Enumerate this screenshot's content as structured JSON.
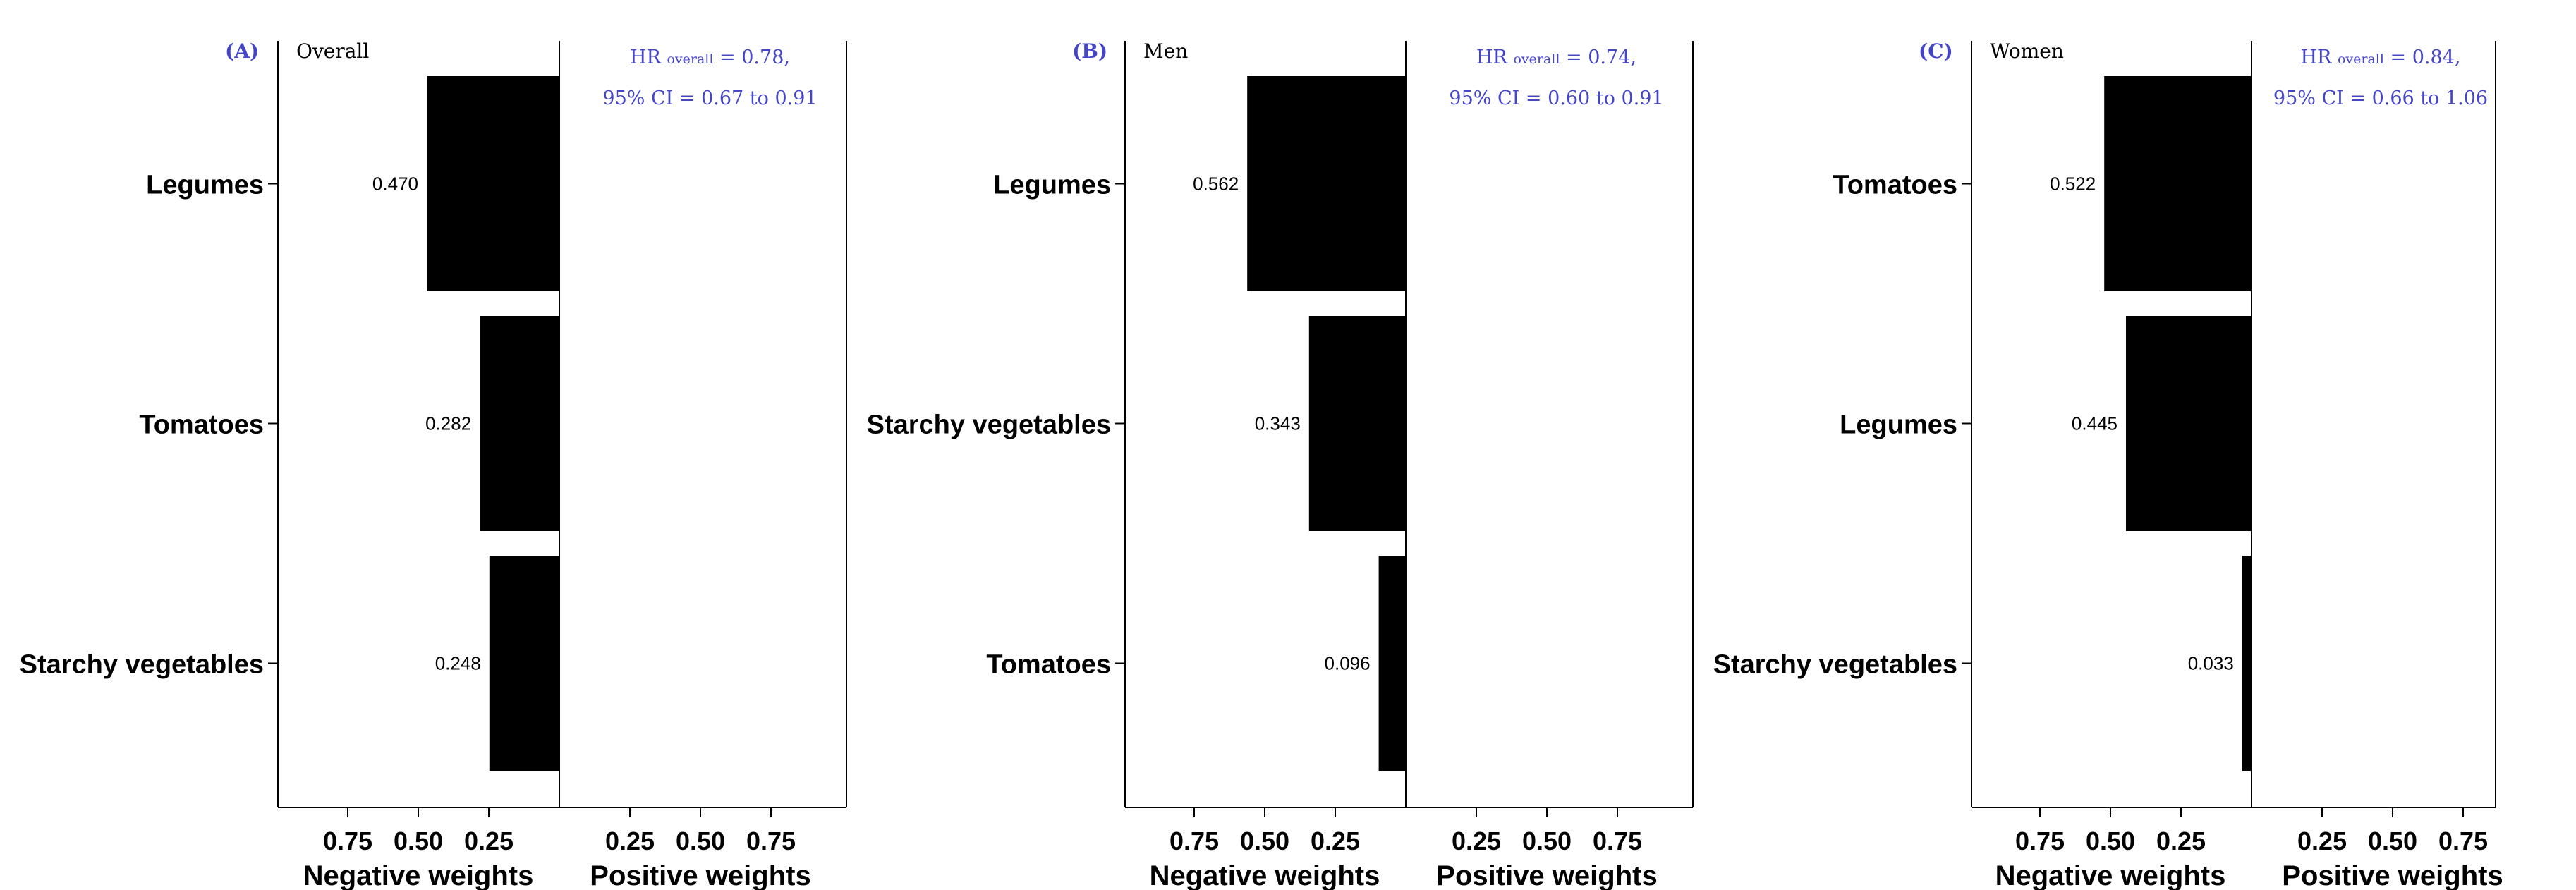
{
  "chart_data": [
    {
      "type": "bar",
      "panel": "(A)",
      "title": "Overall",
      "hr_prefix": "HR",
      "hr_subscript": "overall",
      "hr_value": "= 0.78,",
      "ci_text": "95% CI = 0.67 to 0.91",
      "categories": [
        "Legumes",
        "Tomatoes",
        "Starchy  vegetables"
      ],
      "values": [
        0.47,
        0.282,
        0.248
      ],
      "value_labels": [
        "0.470",
        "0.282",
        "0.248"
      ],
      "sign": "negative",
      "xlim": [
        -1,
        1
      ],
      "ticks_negative": [
        "0.75",
        "0.50",
        "0.25"
      ],
      "ticks_positive": [
        "0.25",
        "0.50",
        "0.75"
      ],
      "xlabel_negative": "Negative weights",
      "xlabel_positive": "Positive weights"
    },
    {
      "type": "bar",
      "panel": "(B)",
      "title": "Men",
      "hr_prefix": "HR",
      "hr_subscript": "overall",
      "hr_value": "= 0.74,",
      "ci_text": "95% CI = 0.60 to 0.91",
      "categories": [
        "Legumes",
        "Starchy  vegetables",
        "Tomatoes"
      ],
      "values": [
        0.562,
        0.343,
        0.096
      ],
      "value_labels": [
        "0.562",
        "0.343",
        "0.096"
      ],
      "sign": "negative",
      "xlim": [
        -1,
        1
      ],
      "ticks_negative": [
        "0.75",
        "0.50",
        "0.25"
      ],
      "ticks_positive": [
        "0.25",
        "0.50",
        "0.75"
      ],
      "xlabel_negative": "Negative weights",
      "xlabel_positive": "Positive weights"
    },
    {
      "type": "bar",
      "panel": "(C)",
      "title": "Women",
      "hr_prefix": "HR",
      "hr_subscript": "overall",
      "hr_value": "= 0.84,",
      "ci_text": "95% CI = 0.66 to 1.06",
      "categories": [
        "Tomatoes",
        "Legumes",
        "Starchy  vegetables"
      ],
      "values": [
        0.522,
        0.445,
        0.033
      ],
      "value_labels": [
        "0.522",
        "0.445",
        "0.033"
      ],
      "sign": "negative",
      "xlim": [
        -1,
        1
      ],
      "ticks_negative": [
        "0.75",
        "0.50",
        "0.25"
      ],
      "ticks_positive": [
        "0.25",
        "0.50",
        "0.75"
      ],
      "xlabel_negative": "Negative weights",
      "xlabel_positive": "Positive weights"
    }
  ]
}
